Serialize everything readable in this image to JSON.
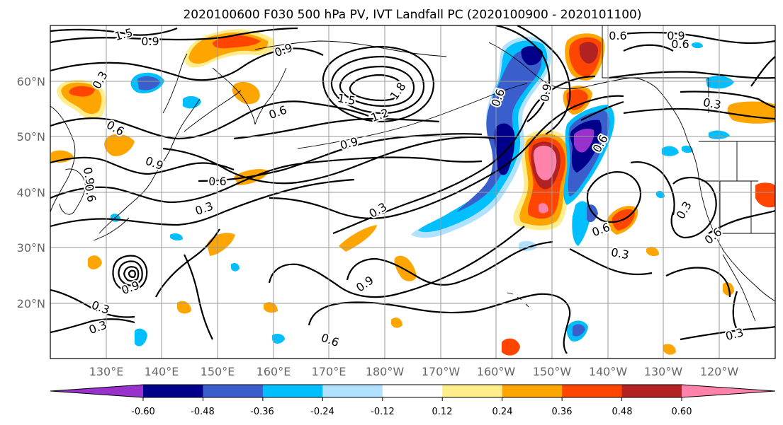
{
  "title": "2020100600 F030 500 hPa PV, IVT Landfall PC (2020100900 - 2020101100)",
  "map": {
    "lon_ticks": [
      "130°E",
      "140°E",
      "150°E",
      "160°E",
      "170°E",
      "180°W",
      "170°W",
      "160°W",
      "150°W",
      "140°W",
      "130°W",
      "120°W"
    ],
    "lat_ticks": [
      "60°N",
      "50°N",
      "40°N",
      "30°N",
      "20°N"
    ],
    "grid": true,
    "extent": {
      "lon_min": 120,
      "lon_max": 250,
      "lat_min": 10,
      "lat_max": 70
    },
    "grid_color": "#999999"
  },
  "colorbar": {
    "colors": [
      "#9932cc",
      "#00008b",
      "#3a5fcd",
      "#00bfff",
      "#b0e2ff",
      "#ffffff",
      "#ffec8b",
      "#ffa500",
      "#ff4500",
      "#b22222",
      "#ff82ab"
    ],
    "labels": [
      "-0.60",
      "-0.48",
      "-0.36",
      "-0.24",
      "-0.12",
      "0.12",
      "0.24",
      "0.36",
      "0.48",
      "0.60"
    ],
    "extend": "both"
  },
  "contour_labels": [
    "1.5",
    "0.9",
    "0.9",
    "0.3",
    "0.6",
    "0.9",
    "1.8",
    "1.5",
    "1.2",
    "0.6",
    "0.9",
    "0.6",
    "0.9",
    "0.6",
    "0.3",
    "0.3",
    "0.9",
    "0.3",
    "0.3",
    "0.9",
    "0.6",
    "0.6",
    "0.9",
    "0.6",
    "0.6",
    "0.9",
    "0.6",
    "0.3",
    "0.6",
    "0.3",
    "0.3",
    "0.6",
    "0.3"
  ]
}
